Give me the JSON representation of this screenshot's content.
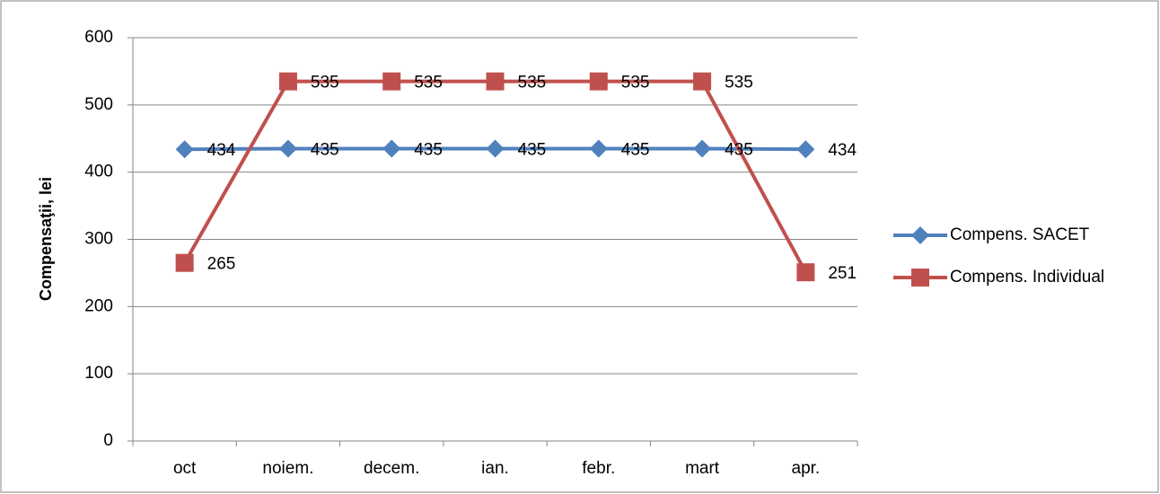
{
  "chart_data": {
    "type": "line",
    "y_label": "Compensaţii, lei",
    "categories": [
      "oct",
      "noiem.",
      "decem.",
      "ian.",
      "febr.",
      "mart",
      "apr."
    ],
    "series": [
      {
        "name": "Compens. SACET",
        "color": "#4f81bd",
        "marker": "diamond",
        "values": [
          434,
          435,
          435,
          435,
          435,
          435,
          434
        ]
      },
      {
        "name": "Compens. Individual",
        "color": "#c0504d",
        "marker": "square",
        "values": [
          265,
          535,
          535,
          535,
          535,
          535,
          251
        ]
      }
    ],
    "ylim": [
      0,
      600
    ],
    "yticks": [
      0,
      100,
      200,
      300,
      400,
      500,
      600
    ],
    "grid": true,
    "legend": "right"
  }
}
